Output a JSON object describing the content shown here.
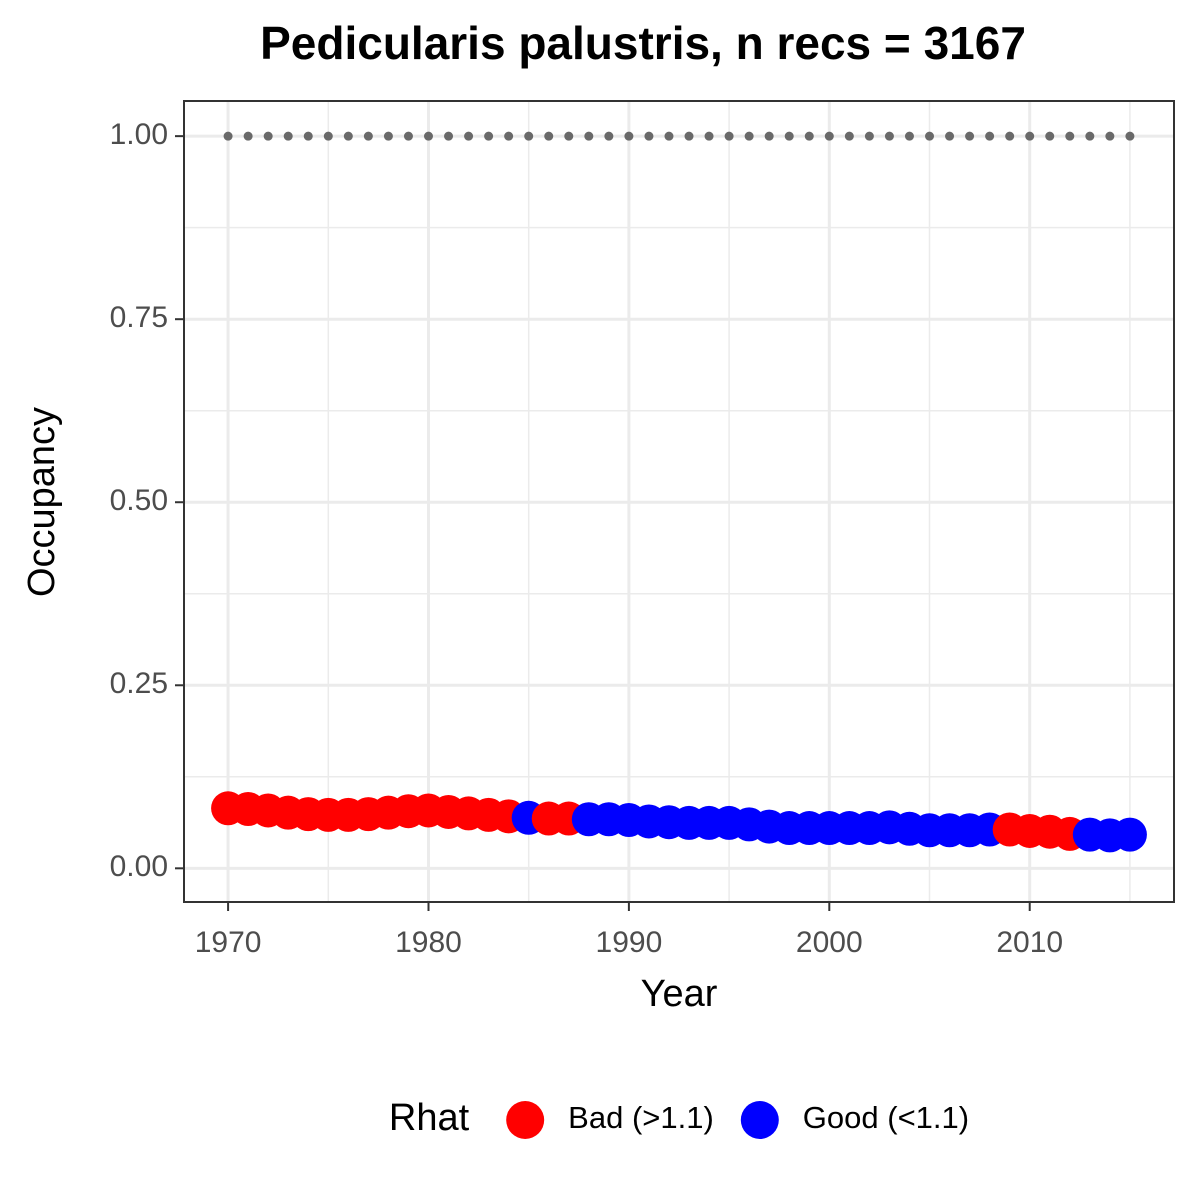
{
  "chart_data": {
    "type": "scatter",
    "title": "Pedicularis palustris, n recs = 3167",
    "x_label": "Year",
    "y_label": "Occupancy",
    "legend_title": "Rhat",
    "legend_position": "bottom",
    "xlim": [
      1967.8,
      2017.2
    ],
    "ylim": [
      -0.046,
      1.048
    ],
    "xticks": [
      1970,
      1980,
      1990,
      2000,
      2010
    ],
    "x_minor_ticks": [
      1975,
      1985,
      1995,
      2005,
      2015
    ],
    "yticks": [
      {
        "value": 0,
        "label": "0.00"
      },
      {
        "value": 0.25,
        "label": "0.25"
      },
      {
        "value": 0.5,
        "label": "0.50"
      },
      {
        "value": 0.75,
        "label": "0.75"
      },
      {
        "value": 1,
        "label": "1.00"
      }
    ],
    "y_minor_ticks": [
      0.125,
      0.375,
      0.625,
      0.875
    ],
    "grid": true,
    "reference_line": {
      "y": 1,
      "color": "#696969",
      "style": "dotted"
    },
    "series": [
      {
        "name": "Bad (>1.1)",
        "color": "#ff0000",
        "x": [
          1970,
          1971,
          1972,
          1973,
          1974,
          1975,
          1976,
          1977,
          1978,
          1979,
          1980,
          1981,
          1982,
          1983,
          1984,
          1986,
          1987,
          2009,
          2010,
          2011,
          2012
        ],
        "values": [
          0.082,
          0.081,
          0.079,
          0.076,
          0.074,
          0.073,
          0.073,
          0.074,
          0.076,
          0.078,
          0.079,
          0.077,
          0.075,
          0.073,
          0.071,
          0.068,
          0.068,
          0.053,
          0.051,
          0.05,
          0.047
        ]
      },
      {
        "name": "Good (<1.1)",
        "color": "#0000ff",
        "x": [
          1985,
          1988,
          1989,
          1990,
          1991,
          1992,
          1993,
          1994,
          1995,
          1996,
          1997,
          1998,
          1999,
          2000,
          2001,
          2002,
          2003,
          2004,
          2005,
          2006,
          2007,
          2008,
          2013,
          2014,
          2015
        ],
        "values": [
          0.069,
          0.067,
          0.067,
          0.066,
          0.064,
          0.063,
          0.062,
          0.062,
          0.062,
          0.06,
          0.057,
          0.055,
          0.055,
          0.055,
          0.055,
          0.055,
          0.056,
          0.054,
          0.052,
          0.052,
          0.052,
          0.053,
          0.046,
          0.045,
          0.046
        ]
      }
    ]
  }
}
